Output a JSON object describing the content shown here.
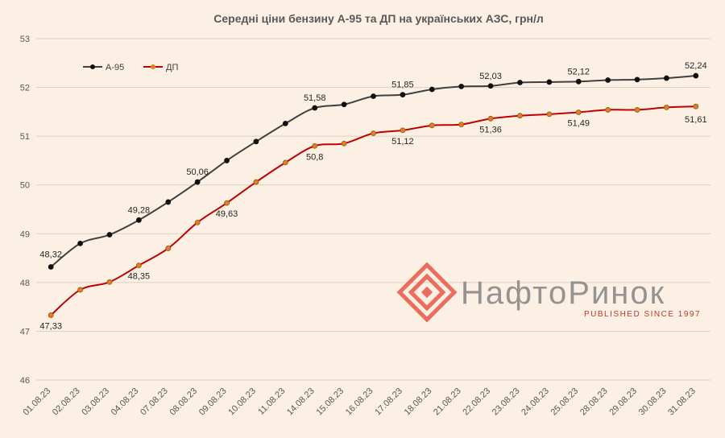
{
  "chart_data": {
    "type": "line",
    "title": "Середні ціни бензину А-95 та ДП на українських АЗС, грн/л",
    "categories": [
      "01.08.23",
      "02.08.23",
      "03.08.23",
      "04.08.23",
      "07.08.23",
      "08.08.23",
      "09.08.23",
      "10.08.23",
      "11.08.23",
      "14.08.23",
      "15.08.23",
      "16.08.23",
      "17.08.23",
      "18.08.23",
      "21.08.23",
      "22.08.23",
      "23.08.23",
      "24.08.23",
      "25.08.23",
      "28.08.23",
      "29.08.23",
      "30.08.23",
      "31.08.23"
    ],
    "series": [
      {
        "name": "А-95",
        "color": "#404040",
        "values": [
          48.32,
          48.8,
          48.98,
          49.28,
          49.65,
          50.06,
          50.5,
          50.89,
          51.26,
          51.58,
          51.65,
          51.82,
          51.85,
          51.96,
          52.02,
          52.03,
          52.1,
          52.11,
          52.12,
          52.15,
          52.16,
          52.19,
          52.24
        ],
        "labels": {
          "0": "48,32",
          "3": "49,28",
          "5": "50,06",
          "9": "51,58",
          "12": "51,85",
          "15": "52,03",
          "18": "52,12",
          "22": "52,24"
        }
      },
      {
        "name": "ДП",
        "color": "#c00000",
        "values": [
          47.33,
          47.85,
          48.01,
          48.35,
          48.7,
          49.23,
          49.63,
          50.06,
          50.46,
          50.8,
          50.85,
          51.06,
          51.12,
          51.22,
          51.24,
          51.36,
          51.42,
          51.45,
          51.49,
          51.54,
          51.54,
          51.59,
          51.61
        ],
        "labels": {
          "0": "47,33",
          "3": "48,35",
          "6": "49,63",
          "9": "50,8",
          "12": "51,12",
          "15": "51,36",
          "18": "51,49",
          "22": "51,61"
        }
      }
    ],
    "ylim": [
      46,
      53
    ],
    "yticks": [
      46,
      47,
      48,
      49,
      50,
      51,
      52,
      53
    ],
    "grid": true,
    "legend": "top-left"
  },
  "logo": {
    "name": "НафтоРинок",
    "tagline": "PUBLISHED SINCE 1997"
  }
}
